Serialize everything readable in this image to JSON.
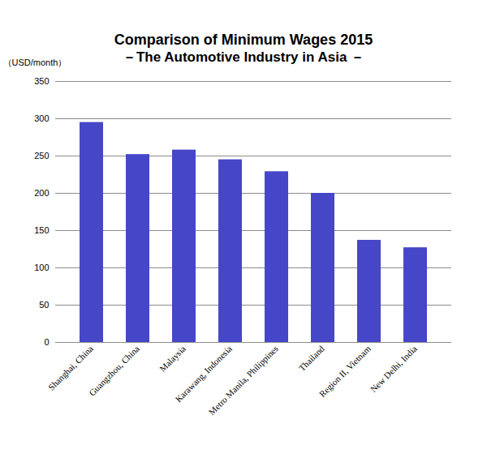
{
  "chart_data": {
    "type": "bar",
    "title": "Comparison of Minimum Wages  2015",
    "subtitle": "－The Automotive Industry in Asia －",
    "y_label": "（USD/month）",
    "categories": [
      "Shanghai, China",
      "Guangzhou, China",
      "Malaysia",
      "Karawang, Indonesia",
      "Metro Manila, Philippines",
      "Thailand",
      "Region II, Vietnam",
      "New Delhi, India"
    ],
    "values": [
      295,
      252,
      258,
      245,
      229,
      200,
      137,
      127
    ],
    "color": "#4646c8",
    "ylim": [
      0,
      350
    ],
    "yticks": [
      0,
      50,
      100,
      150,
      200,
      250,
      300,
      350
    ],
    "grid": true
  }
}
